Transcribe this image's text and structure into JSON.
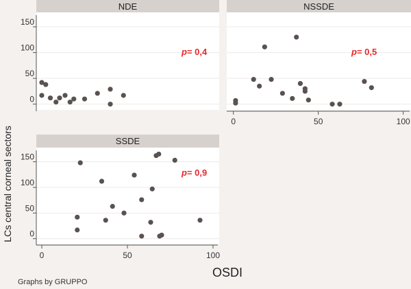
{
  "chart_data": {
    "type": "scatter",
    "xlabel": "OSDI",
    "ylabel": "LCs central corneal sectors",
    "note": "Graphs by GRUPPO",
    "xlim": [
      0,
      100
    ],
    "ylim": [
      0,
      165
    ],
    "xticks": [
      "0",
      "50",
      "100"
    ],
    "yticks": [
      "0",
      "50",
      "100",
      "150"
    ],
    "grid": true,
    "colors": {
      "point": "#5a5250",
      "strip": "#d7d1cd",
      "pvalue": "#e8282b"
    },
    "panels": [
      {
        "name": "NDE",
        "p_label": "p",
        "p_value": "=  0,4",
        "points": [
          [
            0,
            42
          ],
          [
            2.3,
            38
          ],
          [
            0,
            17
          ],
          [
            5,
            12
          ],
          [
            8.3,
            4
          ],
          [
            10.4,
            12
          ],
          [
            13.6,
            17
          ],
          [
            16.5,
            4
          ],
          [
            18.7,
            10
          ],
          [
            25,
            10
          ],
          [
            32.5,
            21
          ],
          [
            40,
            29
          ],
          [
            40,
            0
          ],
          [
            47.7,
            17
          ]
        ]
      },
      {
        "name": "NSSDE",
        "p_label": "p",
        "p_value": "=  0,5",
        "points": [
          [
            1.3,
            7
          ],
          [
            1.3,
            2
          ],
          [
            11.9,
            48
          ],
          [
            15.3,
            35
          ],
          [
            18.4,
            111
          ],
          [
            22.3,
            48
          ],
          [
            28.9,
            21
          ],
          [
            34.7,
            11
          ],
          [
            37.1,
            130
          ],
          [
            39.4,
            40
          ],
          [
            42.2,
            30
          ],
          [
            42.2,
            25
          ],
          [
            44.2,
            8
          ],
          [
            58.2,
            0
          ],
          [
            62.6,
            0
          ],
          [
            77.1,
            44
          ],
          [
            81.3,
            32
          ]
        ]
      },
      {
        "name": "SSDE",
        "p_label": "p",
        "p_value": "=  0,9",
        "points": [
          [
            22.5,
            148
          ],
          [
            20.7,
            42
          ],
          [
            20.7,
            17
          ],
          [
            35,
            112
          ],
          [
            37.3,
            36
          ],
          [
            41.3,
            63
          ],
          [
            48,
            50
          ],
          [
            54,
            124
          ],
          [
            58.3,
            76
          ],
          [
            58.3,
            5
          ],
          [
            63.6,
            32
          ],
          [
            64.5,
            97
          ],
          [
            66.8,
            162
          ],
          [
            68.3,
            165
          ],
          [
            68.8,
            5
          ],
          [
            70,
            7
          ],
          [
            77.7,
            153
          ],
          [
            92.4,
            36
          ]
        ]
      }
    ]
  }
}
